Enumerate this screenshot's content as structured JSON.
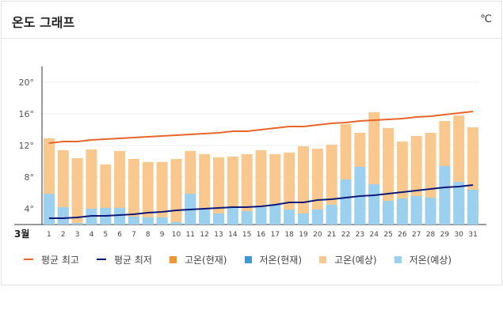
{
  "title": "온도 그래프",
  "unit": "℃",
  "month_label": "3월",
  "legend": {
    "avg_high": "평균 최고",
    "avg_low": "평균 최저",
    "high_current": "고온(현재)",
    "low_current": "저온(현재)",
    "high_forecast": "고온(예상)",
    "low_forecast": "저온(예상)"
  },
  "colors": {
    "avg_high": "#e8652a",
    "avg_low": "#0e1a7a",
    "high_current": "#f0963a",
    "low_current": "#3a9ad6",
    "high_forecast": "#f8c88e",
    "low_forecast": "#9bd0ee"
  },
  "chart_data": {
    "type": "bar",
    "title": "온도 그래프",
    "xlabel": "3월",
    "ylabel": "℃",
    "ylim": [
      2,
      21
    ],
    "yticks": [
      "4°",
      "8°",
      "12°",
      "16°",
      "20°"
    ],
    "categories": [
      "1",
      "2",
      "3",
      "4",
      "5",
      "6",
      "7",
      "8",
      "9",
      "10",
      "11",
      "12",
      "13",
      "14",
      "15",
      "16",
      "17",
      "18",
      "19",
      "20",
      "21",
      "22",
      "23",
      "24",
      "25",
      "26",
      "27",
      "28",
      "29",
      "30",
      "31"
    ],
    "series": [
      {
        "name": "고온(예상)",
        "values": [
          12.9,
          11.4,
          10.4,
          11.5,
          9.6,
          11.3,
          10.3,
          9.9,
          9.9,
          10.3,
          11.3,
          10.9,
          10.5,
          10.6,
          10.9,
          11.4,
          10.9,
          11.1,
          11.9,
          11.6,
          12.1,
          14.7,
          13.6,
          16.2,
          14.2,
          12.5,
          13.2,
          13.6,
          15.1,
          15.8,
          14.3
        ]
      },
      {
        "name": "저온(예상)",
        "values": [
          5.9,
          4.2,
          2.2,
          4.0,
          4.1,
          4.1,
          3.0,
          2.9,
          2.9,
          2.3,
          5.9,
          3.9,
          3.4,
          4.2,
          3.7,
          4.2,
          4.6,
          3.9,
          3.4,
          3.9,
          4.5,
          7.7,
          9.3,
          7.1,
          5.0,
          5.3,
          5.6,
          5.4,
          9.4,
          7.4,
          6.4
        ]
      },
      {
        "name": "평균 최고",
        "values": [
          12.3,
          12.5,
          12.5,
          12.7,
          12.8,
          12.9,
          13.0,
          13.1,
          13.2,
          13.3,
          13.4,
          13.5,
          13.6,
          13.8,
          13.8,
          14.0,
          14.2,
          14.4,
          14.4,
          14.6,
          14.8,
          14.9,
          15.1,
          15.2,
          15.3,
          15.4,
          15.6,
          15.7,
          15.9,
          16.1,
          16.3
        ]
      },
      {
        "name": "평균 최저",
        "values": [
          2.8,
          2.8,
          2.9,
          3.1,
          3.1,
          3.2,
          3.3,
          3.5,
          3.6,
          3.8,
          3.9,
          4.0,
          4.1,
          4.2,
          4.2,
          4.3,
          4.5,
          4.8,
          4.8,
          5.1,
          5.2,
          5.4,
          5.6,
          5.7,
          5.9,
          6.1,
          6.3,
          6.5,
          6.7,
          6.8,
          7.0
        ]
      }
    ],
    "grid": true,
    "legend_position": "bottom"
  }
}
